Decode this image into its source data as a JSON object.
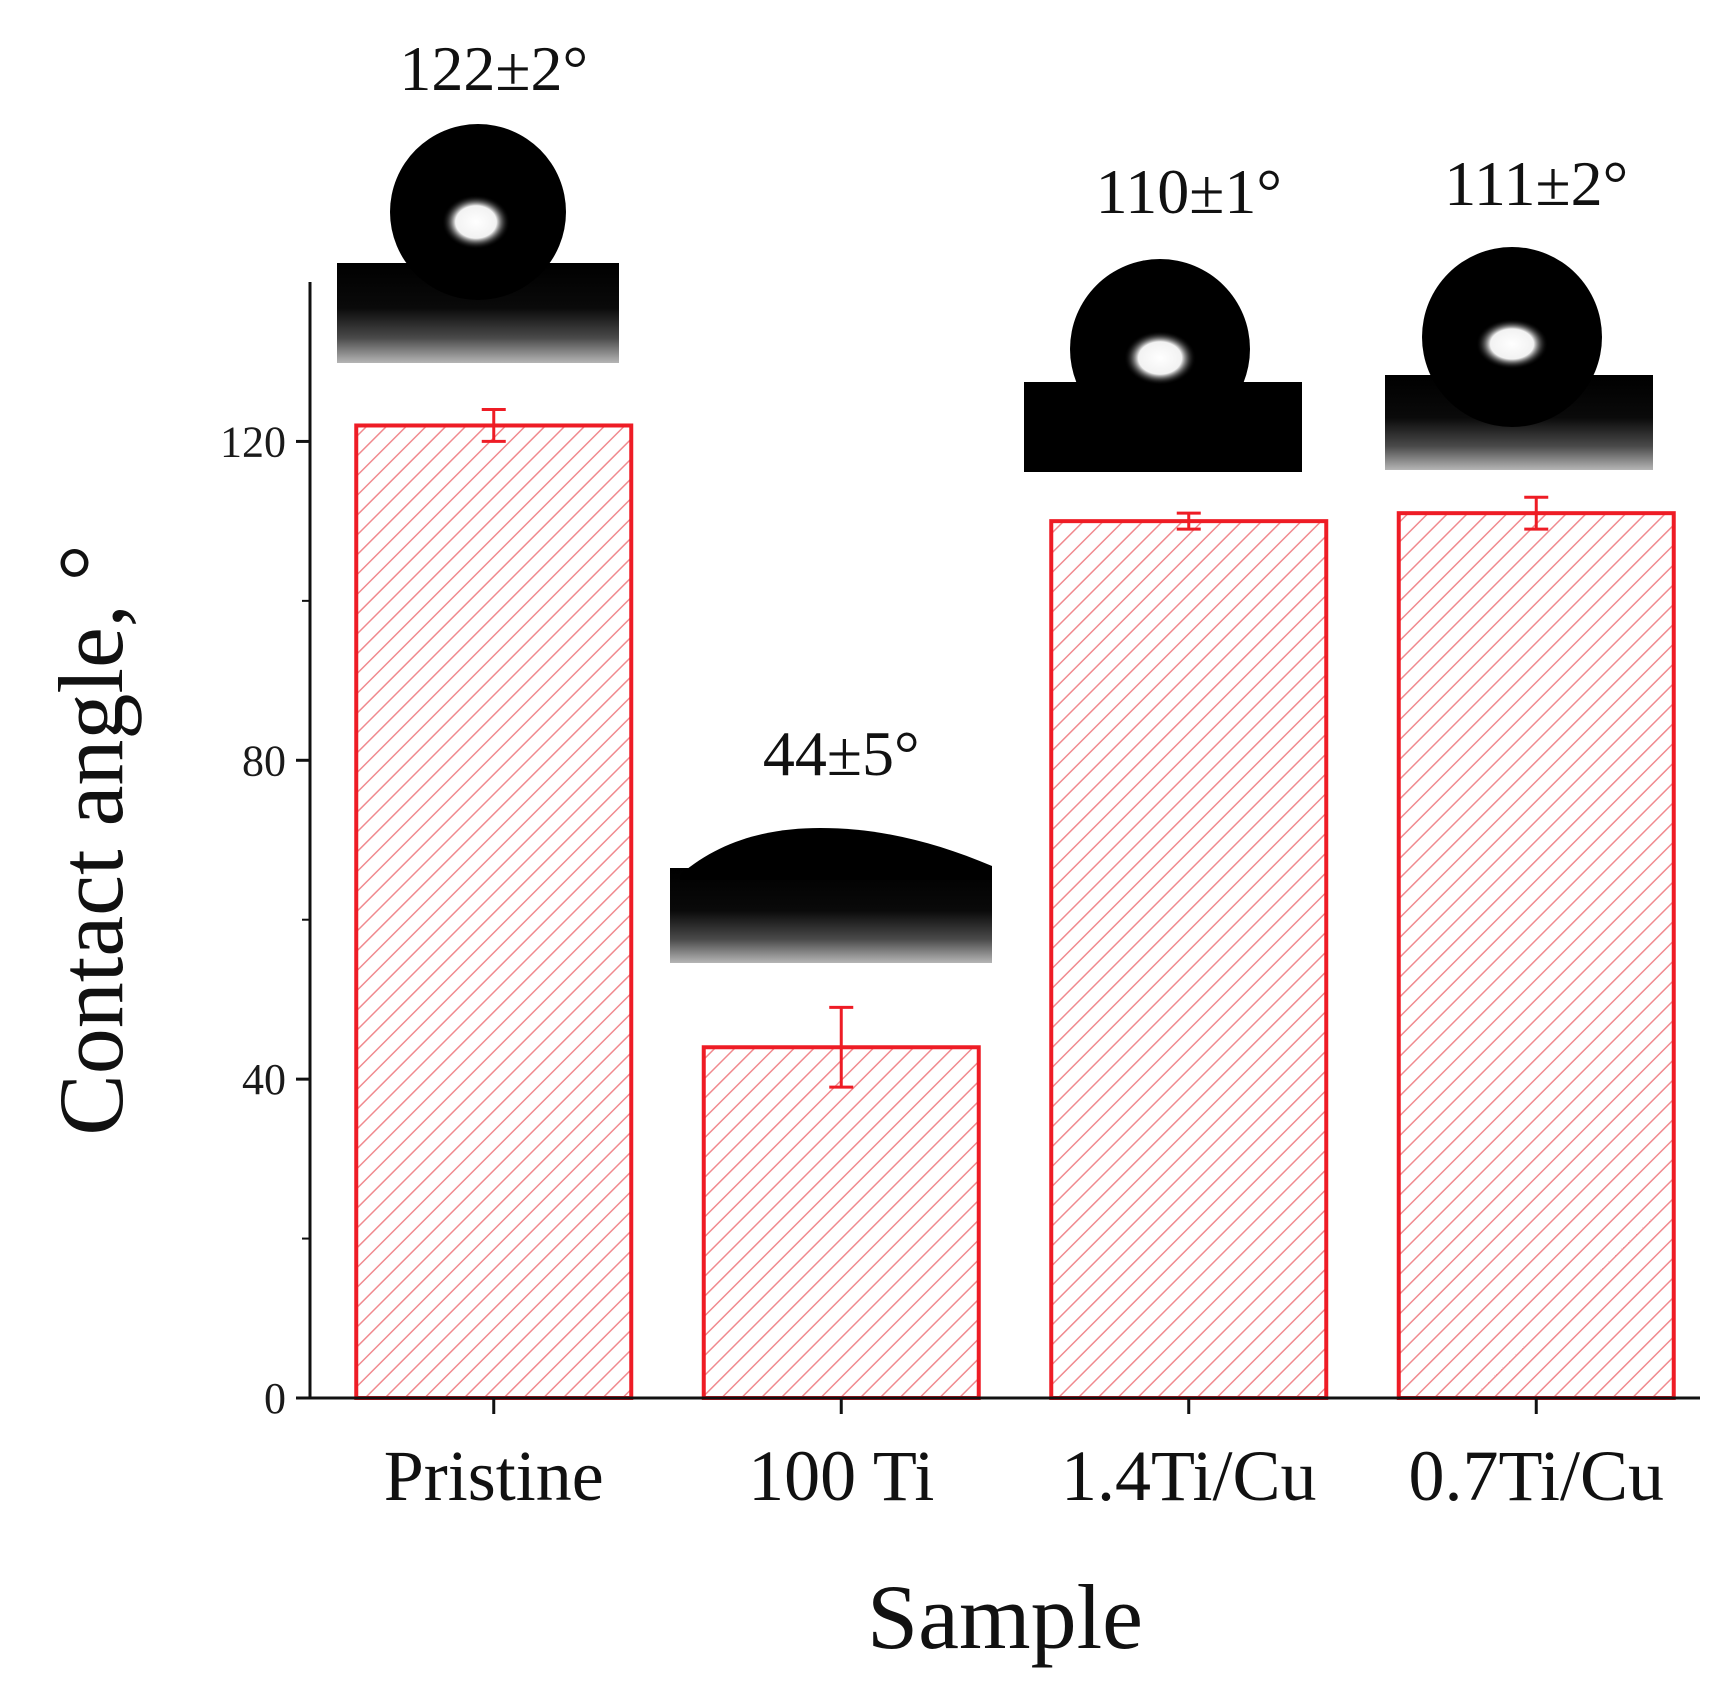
{
  "chart_data": {
    "type": "bar",
    "categories": [
      "Pristine",
      "100 Ti",
      "1.4Ti/Cu",
      "0.7Ti/Cu"
    ],
    "values": [
      122,
      44,
      110,
      111
    ],
    "errors": [
      2,
      5,
      1,
      2
    ],
    "annotations": [
      "122±2°",
      "44±5°",
      "110±1°",
      "111±2°"
    ],
    "xlabel": "Sample",
    "ylabel": "Contact angle, °",
    "ylim": [
      0,
      140
    ],
    "yticks": [
      0,
      40,
      80,
      120
    ],
    "ytick_labels": [
      "0",
      "40",
      "80",
      "120"
    ],
    "grid": false,
    "bar_fill": "hatched",
    "colors": {
      "bar": "#ee1c25",
      "axis": "#111111",
      "droplet": "#000000"
    },
    "insets": [
      "water-droplet-photo",
      "water-droplet-photo",
      "water-droplet-photo",
      "water-droplet-photo"
    ]
  }
}
